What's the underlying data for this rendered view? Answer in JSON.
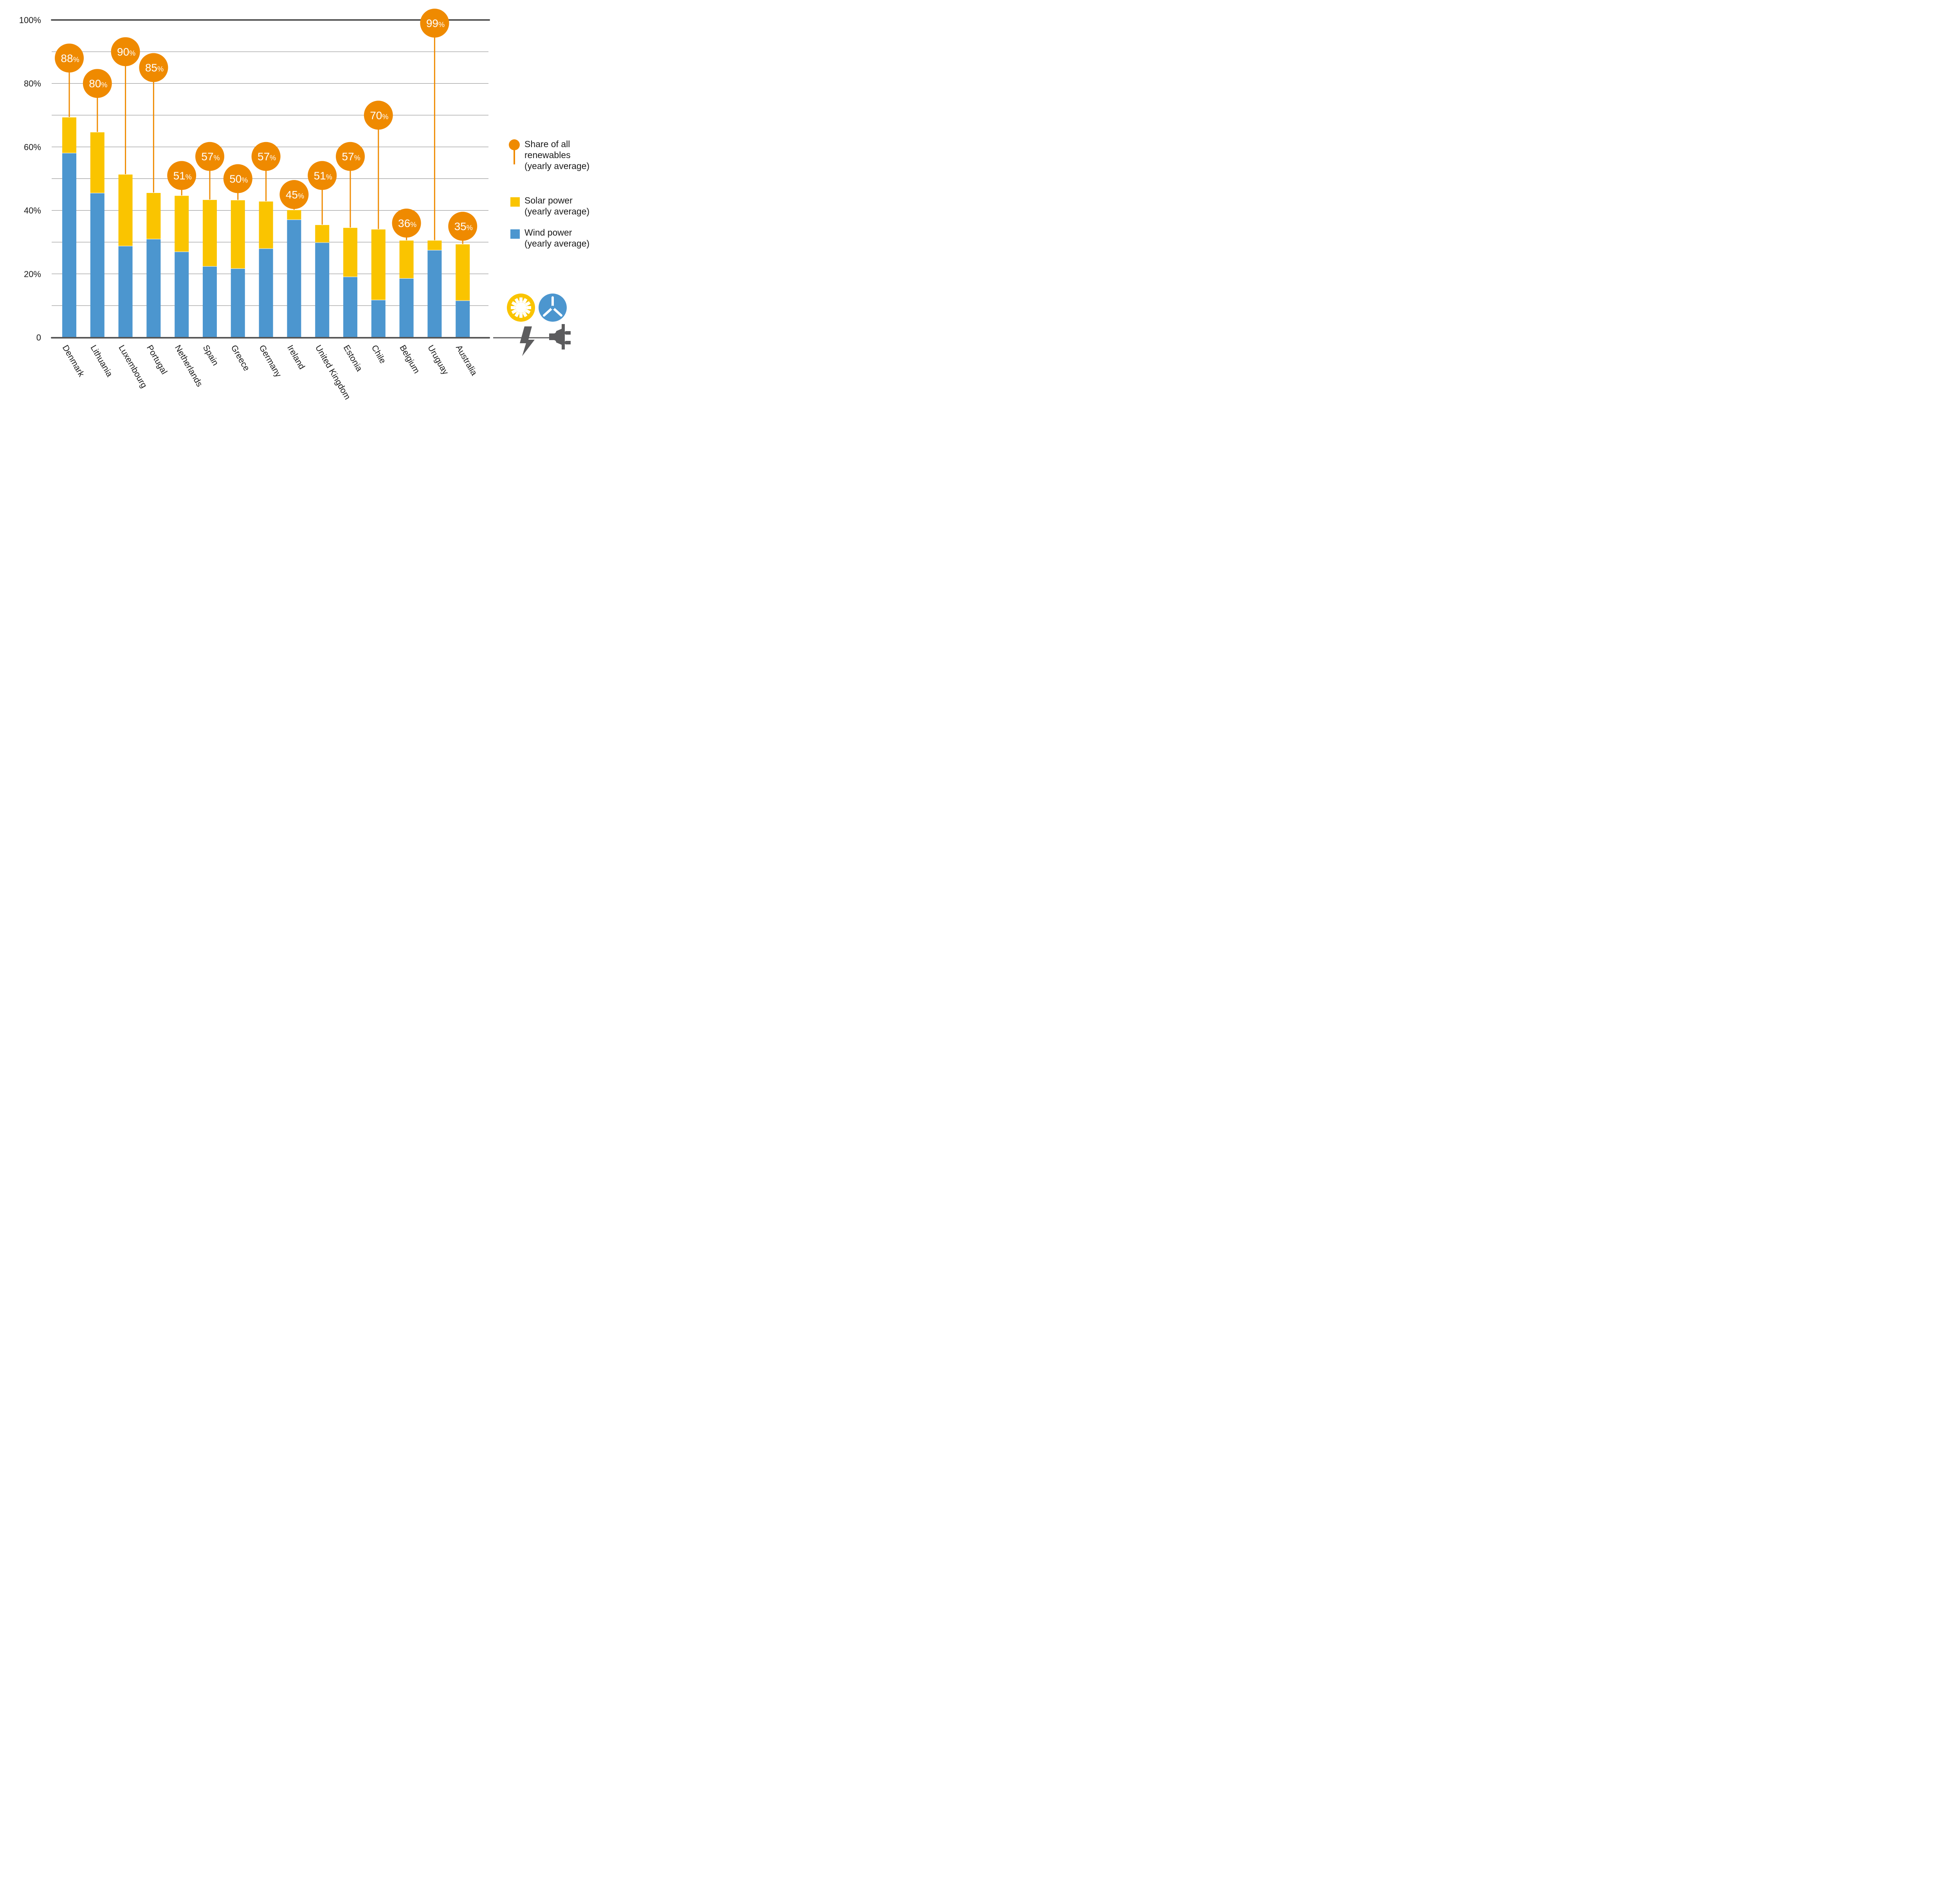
{
  "colors": {
    "wind": "#4C96CF",
    "solar": "#FAC400",
    "share": "#EF8A00",
    "axis": "#555555",
    "grid": "#808080",
    "icon_dark": "#5C5C5E"
  },
  "legend": {
    "share": "Share of all renewables (yearly average)",
    "share_lines": [
      "Share of all",
      "renewables",
      "(yearly average)"
    ],
    "solar_lines": [
      "Solar power",
      "(yearly average)"
    ],
    "wind_lines": [
      "Wind power",
      "(yearly average)"
    ]
  },
  "icons": [
    "sun-icon",
    "wind-turbine-icon",
    "lightning-bolt-icon",
    "power-plug-icon"
  ],
  "chart_data": {
    "type": "bar",
    "stacked": true,
    "title": "",
    "xlabel": "",
    "ylabel": "",
    "ylim": [
      0,
      100
    ],
    "y_ticks": [
      0,
      20,
      40,
      60,
      80,
      100
    ],
    "y_tick_labels": [
      "0",
      "20%",
      "40%",
      "60%",
      "80%",
      "100%"
    ],
    "grid": true,
    "grid_step": 10,
    "legend_position": "right",
    "categories": [
      "Denmark",
      "Lithuania",
      "Luxembourg",
      "Portugal",
      "Netherlands",
      "Spain",
      "Greece",
      "Germany",
      "Ireland",
      "United Kingdom",
      "Estonia",
      "Chile",
      "Belgium",
      "Uruguay",
      "Australia"
    ],
    "series": [
      {
        "name": "Wind power (yearly average)",
        "values": [
          58.0,
          45.4,
          28.7,
          30.9,
          26.9,
          22.3,
          21.6,
          27.9,
          37.0,
          29.8,
          19.0,
          11.7,
          18.5,
          27.4,
          11.5
        ]
      },
      {
        "name": "Solar power (yearly average)",
        "values": [
          11.3,
          19.2,
          22.6,
          14.6,
          17.7,
          21.0,
          21.6,
          14.9,
          3.1,
          5.6,
          15.5,
          22.3,
          12.0,
          3.1,
          17.8
        ]
      },
      {
        "name": "Share of all renewables (yearly average)",
        "type": "lollipop",
        "values": [
          88,
          80,
          90,
          85,
          51,
          57,
          50,
          57,
          45,
          51,
          57,
          70,
          36,
          99,
          35
        ]
      }
    ]
  }
}
